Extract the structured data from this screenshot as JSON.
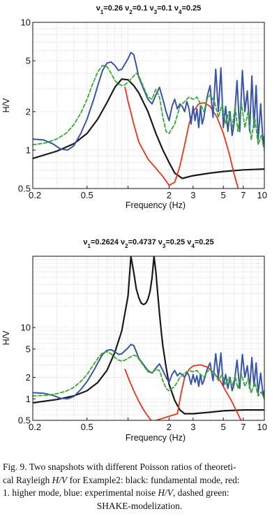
{
  "caption": {
    "prefix": "Fig. 9. Two snapshots with different Poisson ratios of theoreti-",
    "line2": "cal Rayleigh ",
    "hv1": "H/V",
    "line2b": " for Example2: black: fundamental mode, red:",
    "line3": "1. higher mode, blue: experimental noise ",
    "hv2": "H/V",
    "line3b": ", dashed green:",
    "line4": "SHAKE-modelization."
  },
  "chart_data": [
    {
      "type": "line",
      "title_parts": [
        "ν",
        "1",
        "=0.26 ν",
        "2",
        "=0.1 ν",
        "3",
        "=0.1 ν",
        "4",
        "=0.25"
      ],
      "xlabel": "Frequency (Hz)",
      "ylabel": "H/V",
      "xscale": "log",
      "yscale": "log",
      "xlim": [
        0.2,
        10
      ],
      "ylim": [
        0.5,
        10
      ],
      "xticks": [
        0.2,
        0.5,
        1,
        2,
        3,
        5,
        7,
        10
      ],
      "xticklabels": [
        "0.2",
        "0.5",
        "",
        "2",
        "3",
        "5",
        "7",
        "10"
      ],
      "yticks": [
        0.5,
        1,
        2,
        5,
        10
      ],
      "yticklabels": [
        "0.5",
        "1",
        "2",
        "5",
        "10"
      ],
      "grid": true,
      "series": [
        {
          "color": "#1a1a1a",
          "style": "solid",
          "width": 2.2,
          "x": [
            0.2,
            0.3,
            0.4,
            0.5,
            0.6,
            0.7,
            0.8,
            0.9,
            1.0,
            1.1,
            1.2,
            1.4,
            1.6,
            1.8,
            2.0,
            2.2,
            2.5,
            3.0,
            4.0,
            5.0,
            7.0,
            10.0
          ],
          "y": [
            0.86,
            0.98,
            1.12,
            1.35,
            1.75,
            2.35,
            3.1,
            3.6,
            3.55,
            3.2,
            2.8,
            2.0,
            1.35,
            1.0,
            0.8,
            0.66,
            0.6,
            0.63,
            0.66,
            0.68,
            0.7,
            0.71
          ]
        },
        {
          "color": "#e8341c",
          "style": "solid",
          "width": 1.8,
          "x": [
            0.95,
            1.0,
            1.1,
            1.2,
            1.4,
            1.6,
            1.8,
            2.0,
            2.2,
            2.4,
            2.6,
            2.8,
            3.0,
            3.3,
            3.6,
            4.0,
            4.5,
            5.0,
            5.5,
            6.0,
            6.5
          ],
          "y": [
            3.1,
            2.4,
            1.6,
            1.15,
            0.85,
            0.72,
            0.62,
            0.53,
            0.56,
            0.75,
            1.1,
            1.6,
            2.0,
            2.3,
            2.35,
            2.2,
            1.8,
            1.35,
            0.95,
            0.65,
            0.48
          ]
        },
        {
          "color": "#3a55a5",
          "style": "solid",
          "width": 2.0,
          "x": [
            0.2,
            0.24,
            0.28,
            0.32,
            0.36,
            0.4,
            0.45,
            0.5,
            0.56,
            0.6,
            0.65,
            0.7,
            0.75,
            0.8,
            0.85,
            0.9,
            1.0,
            1.05,
            1.1,
            1.15,
            1.2,
            1.3,
            1.4,
            1.5,
            1.6,
            1.7,
            1.8,
            1.9,
            2.0,
            2.1,
            2.2,
            2.3,
            2.4,
            2.5,
            2.6,
            2.7,
            2.8,
            2.9,
            3.0,
            3.1,
            3.2,
            3.3,
            3.4,
            3.5,
            3.6,
            3.8,
            4.0,
            4.2,
            4.4,
            4.6,
            4.8,
            5.0,
            5.2,
            5.4,
            5.6,
            5.8,
            6.0,
            6.3,
            6.6,
            6.9,
            7.2,
            7.5,
            7.8,
            8.1,
            8.4,
            8.7,
            9.0,
            9.4,
            9.8,
            10.0
          ],
          "y": [
            1.22,
            1.2,
            1.12,
            1.02,
            1.0,
            1.08,
            1.35,
            1.75,
            2.5,
            3.2,
            4.2,
            4.8,
            4.9,
            4.6,
            4.2,
            4.3,
            5.2,
            5.8,
            5.6,
            4.6,
            3.7,
            3.0,
            2.5,
            2.3,
            2.7,
            3.1,
            2.5,
            2.0,
            1.7,
            2.2,
            2.5,
            2.1,
            2.3,
            2.2,
            2.0,
            2.4,
            2.1,
            1.6,
            2.2,
            1.7,
            2.1,
            1.5,
            2.2,
            1.6,
            1.8,
            2.6,
            3.2,
            1.8,
            4.3,
            2.0,
            4.4,
            1.5,
            2.2,
            1.4,
            2.0,
            1.3,
            1.6,
            3.5,
            1.4,
            4.2,
            2.0,
            2.9,
            1.4,
            3.8,
            1.5,
            3.2,
            1.2,
            2.3,
            1.1,
            1.3
          ]
        },
        {
          "color": "#39a935",
          "style": "dashed",
          "width": 1.8,
          "x": [
            0.2,
            0.25,
            0.3,
            0.35,
            0.4,
            0.45,
            0.5,
            0.55,
            0.6,
            0.65,
            0.7,
            0.75,
            0.8,
            0.85,
            0.9,
            0.95,
            1.0,
            1.05,
            1.1,
            1.15,
            1.2,
            1.3,
            1.4,
            1.5,
            1.6,
            1.7,
            1.8,
            1.9,
            2.0,
            2.2,
            2.4,
            2.6,
            2.8,
            3.0,
            3.2,
            3.4,
            3.6,
            3.8,
            4.0,
            4.3,
            4.6,
            4.9,
            5.2,
            5.5,
            5.8,
            6.1,
            6.4,
            6.8,
            7.2,
            7.6,
            8.0,
            8.5,
            9.0,
            9.5,
            10.0
          ],
          "y": [
            1.1,
            1.14,
            1.22,
            1.35,
            1.58,
            1.95,
            2.5,
            3.3,
            4.1,
            4.6,
            4.5,
            4.0,
            3.5,
            3.3,
            3.2,
            3.25,
            3.4,
            3.6,
            3.8,
            4.0,
            3.8,
            3.1,
            2.6,
            2.5,
            3.0,
            2.6,
            1.8,
            1.4,
            1.35,
            1.6,
            2.2,
            2.4,
            2.6,
            2.5,
            2.6,
            2.3,
            2.0,
            2.5,
            2.7,
            2.4,
            1.8,
            2.3,
            1.6,
            2.0,
            1.5,
            2.2,
            1.4,
            2.3,
            1.5,
            2.0,
            1.2,
            1.8,
            1.1,
            1.3,
            1.0
          ]
        }
      ]
    },
    {
      "type": "line",
      "title_parts": [
        "ν",
        "1",
        "=0.2624 ν",
        "2",
        "=0.4737 ν",
        "3",
        "=0.25 ν",
        "4",
        "=0.25"
      ],
      "xlabel": "Frequency (Hz)",
      "ylabel": "H/V",
      "xscale": "log",
      "yscale": "log",
      "xlim": [
        0.2,
        10
      ],
      "ylim": [
        0.5,
        100
      ],
      "xticks": [
        0.2,
        0.5,
        1,
        2,
        3,
        5,
        7,
        10
      ],
      "xticklabels": [
        "0.2",
        "0.5",
        "",
        "2",
        "3",
        "5",
        "7",
        "10"
      ],
      "yticks": [
        0.5,
        1,
        2,
        5,
        10
      ],
      "yticklabels": [
        "0.5",
        "1",
        "2",
        "5",
        "10"
      ],
      "grid": true,
      "series": [
        {
          "color": "#1a1a1a",
          "style": "solid",
          "width": 2.2,
          "x": [
            0.2,
            0.3,
            0.4,
            0.5,
            0.6,
            0.7,
            0.8,
            0.9,
            1.0,
            1.05,
            1.1,
            1.15,
            1.2,
            1.25,
            1.3,
            1.35,
            1.4,
            1.45,
            1.5,
            1.55,
            1.6,
            1.65,
            1.7,
            1.75,
            1.8,
            1.9,
            2.0,
            2.2,
            2.4,
            2.6,
            3.0,
            4.0,
            5.0,
            7.0,
            10.0
          ],
          "y": [
            0.88,
            0.98,
            1.1,
            1.3,
            1.7,
            2.5,
            4.5,
            9,
            28,
            100,
            60,
            35,
            26,
            22,
            21,
            22,
            25,
            32,
            50,
            100,
            60,
            30,
            16,
            9,
            5.5,
            2.8,
            1.6,
            0.95,
            0.7,
            0.62,
            0.62,
            0.65,
            0.68,
            0.7,
            0.7
          ]
        },
        {
          "color": "#e8341c",
          "style": "solid",
          "width": 1.8,
          "x": [
            0.95,
            1.0,
            1.1,
            1.2,
            1.3,
            1.4,
            1.5,
            2.3,
            2.45,
            2.6,
            2.8,
            3.0,
            3.4,
            3.8,
            4.2,
            4.7,
            5.2,
            5.8,
            6.3,
            6.8
          ],
          "y": [
            2.6,
            2.0,
            1.3,
            0.92,
            0.7,
            0.57,
            0.48,
            0.62,
            1.2,
            2.0,
            2.6,
            2.9,
            3.0,
            2.8,
            2.4,
            1.85,
            1.3,
            0.9,
            0.65,
            0.48
          ]
        },
        {
          "color": "#3a55a5",
          "style": "solid",
          "width": 2.0,
          "x": [
            0.2,
            0.24,
            0.28,
            0.32,
            0.36,
            0.4,
            0.45,
            0.5,
            0.56,
            0.6,
            0.65,
            0.7,
            0.75,
            0.8,
            0.85,
            0.9,
            1.0,
            1.05,
            1.1,
            1.15,
            1.2,
            1.3,
            1.4,
            1.5,
            1.6,
            1.7,
            1.8,
            1.9,
            2.0,
            2.1,
            2.2,
            2.3,
            2.4,
            2.5,
            2.6,
            2.7,
            2.8,
            2.9,
            3.0,
            3.1,
            3.2,
            3.3,
            3.4,
            3.5,
            3.6,
            3.8,
            4.0,
            4.2,
            4.4,
            4.6,
            4.8,
            5.0,
            5.2,
            5.4,
            5.6,
            5.8,
            6.0,
            6.3,
            6.6,
            6.9,
            7.2,
            7.5,
            7.8,
            8.1,
            8.4,
            8.7,
            9.0,
            9.4,
            9.8,
            10.0
          ],
          "y": [
            1.22,
            1.2,
            1.12,
            1.02,
            1.0,
            1.08,
            1.35,
            1.75,
            2.5,
            3.2,
            4.2,
            4.8,
            4.9,
            4.6,
            4.2,
            4.3,
            5.2,
            5.8,
            5.6,
            4.6,
            3.7,
            3.0,
            2.5,
            2.3,
            2.7,
            3.1,
            2.5,
            2.0,
            1.7,
            2.2,
            2.5,
            2.1,
            2.3,
            2.2,
            2.0,
            2.4,
            2.1,
            1.6,
            2.2,
            1.7,
            2.1,
            1.5,
            2.2,
            1.6,
            1.8,
            2.6,
            3.2,
            1.8,
            4.3,
            2.0,
            4.4,
            1.5,
            2.2,
            1.4,
            2.0,
            1.3,
            1.6,
            3.5,
            1.4,
            4.2,
            2.0,
            2.9,
            1.4,
            3.8,
            1.5,
            3.2,
            1.2,
            2.3,
            1.1,
            1.3
          ]
        },
        {
          "color": "#39a935",
          "style": "dashed",
          "width": 1.8,
          "x": [
            0.2,
            0.25,
            0.3,
            0.35,
            0.4,
            0.45,
            0.5,
            0.55,
            0.6,
            0.65,
            0.7,
            0.75,
            0.8,
            0.85,
            0.9,
            0.95,
            1.0,
            1.05,
            1.1,
            1.15,
            1.2,
            1.3,
            1.4,
            1.5,
            1.6,
            1.7,
            1.8,
            1.9,
            2.0,
            2.2,
            2.4,
            2.6,
            2.8,
            3.0,
            3.2,
            3.4,
            3.6,
            3.8,
            4.0,
            4.3,
            4.6,
            4.9,
            5.2,
            5.5,
            5.8,
            6.1,
            6.4,
            6.8,
            7.2,
            7.6,
            8.0,
            8.5,
            9.0,
            9.5,
            10.0
          ],
          "y": [
            1.1,
            1.12,
            1.18,
            1.28,
            1.45,
            1.75,
            2.2,
            2.9,
            3.7,
            4.4,
            4.6,
            4.3,
            3.8,
            3.5,
            3.4,
            3.5,
            3.7,
            3.9,
            4.1,
            4.0,
            3.6,
            2.9,
            2.4,
            2.3,
            2.6,
            2.5,
            1.8,
            1.4,
            1.3,
            1.5,
            2.0,
            2.3,
            2.5,
            2.4,
            2.5,
            2.2,
            2.0,
            2.4,
            2.6,
            2.3,
            1.8,
            2.2,
            1.6,
            2.0,
            1.5,
            2.1,
            1.4,
            2.2,
            1.5,
            1.9,
            1.2,
            1.7,
            1.1,
            1.25,
            1.0
          ]
        }
      ]
    }
  ]
}
